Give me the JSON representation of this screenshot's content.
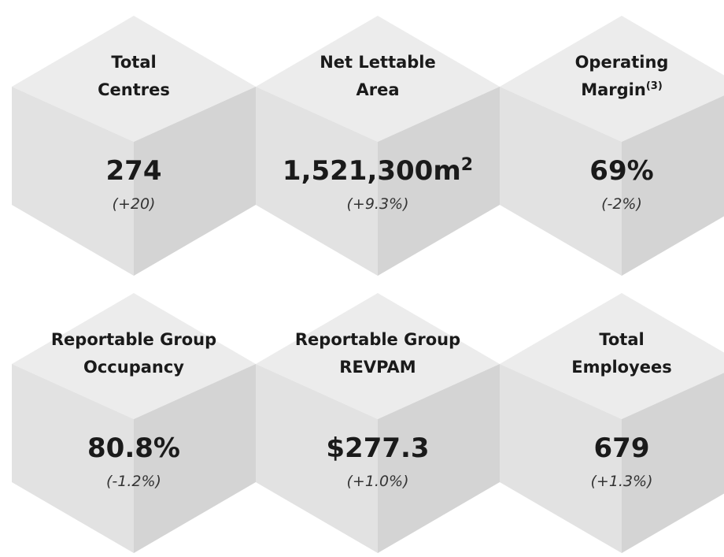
{
  "items": [
    {
      "title": [
        "Total",
        "Centres"
      ],
      "value": "274",
      "change": "(+20)"
    },
    {
      "title": [
        "Net Lettable",
        "Area"
      ],
      "value": "1,521,300m",
      "value_sup": "2",
      "change": "(+9.3%)"
    },
    {
      "title": [
        "Operating",
        "Margin"
      ],
      "title_sup": "(3)",
      "value": "69%",
      "change": "(-2%)"
    },
    {
      "title": [
        "Reportable Group",
        "Occupancy"
      ],
      "value": "80.8%",
      "change": "(-1.2%)"
    },
    {
      "title": [
        "Reportable Group",
        "REVPAM"
      ],
      "value": "$277.3",
      "change": "(+1.0%)"
    },
    {
      "title": [
        "Total",
        "Employees"
      ],
      "value": "679",
      "change": "(+1.3%)"
    }
  ]
}
